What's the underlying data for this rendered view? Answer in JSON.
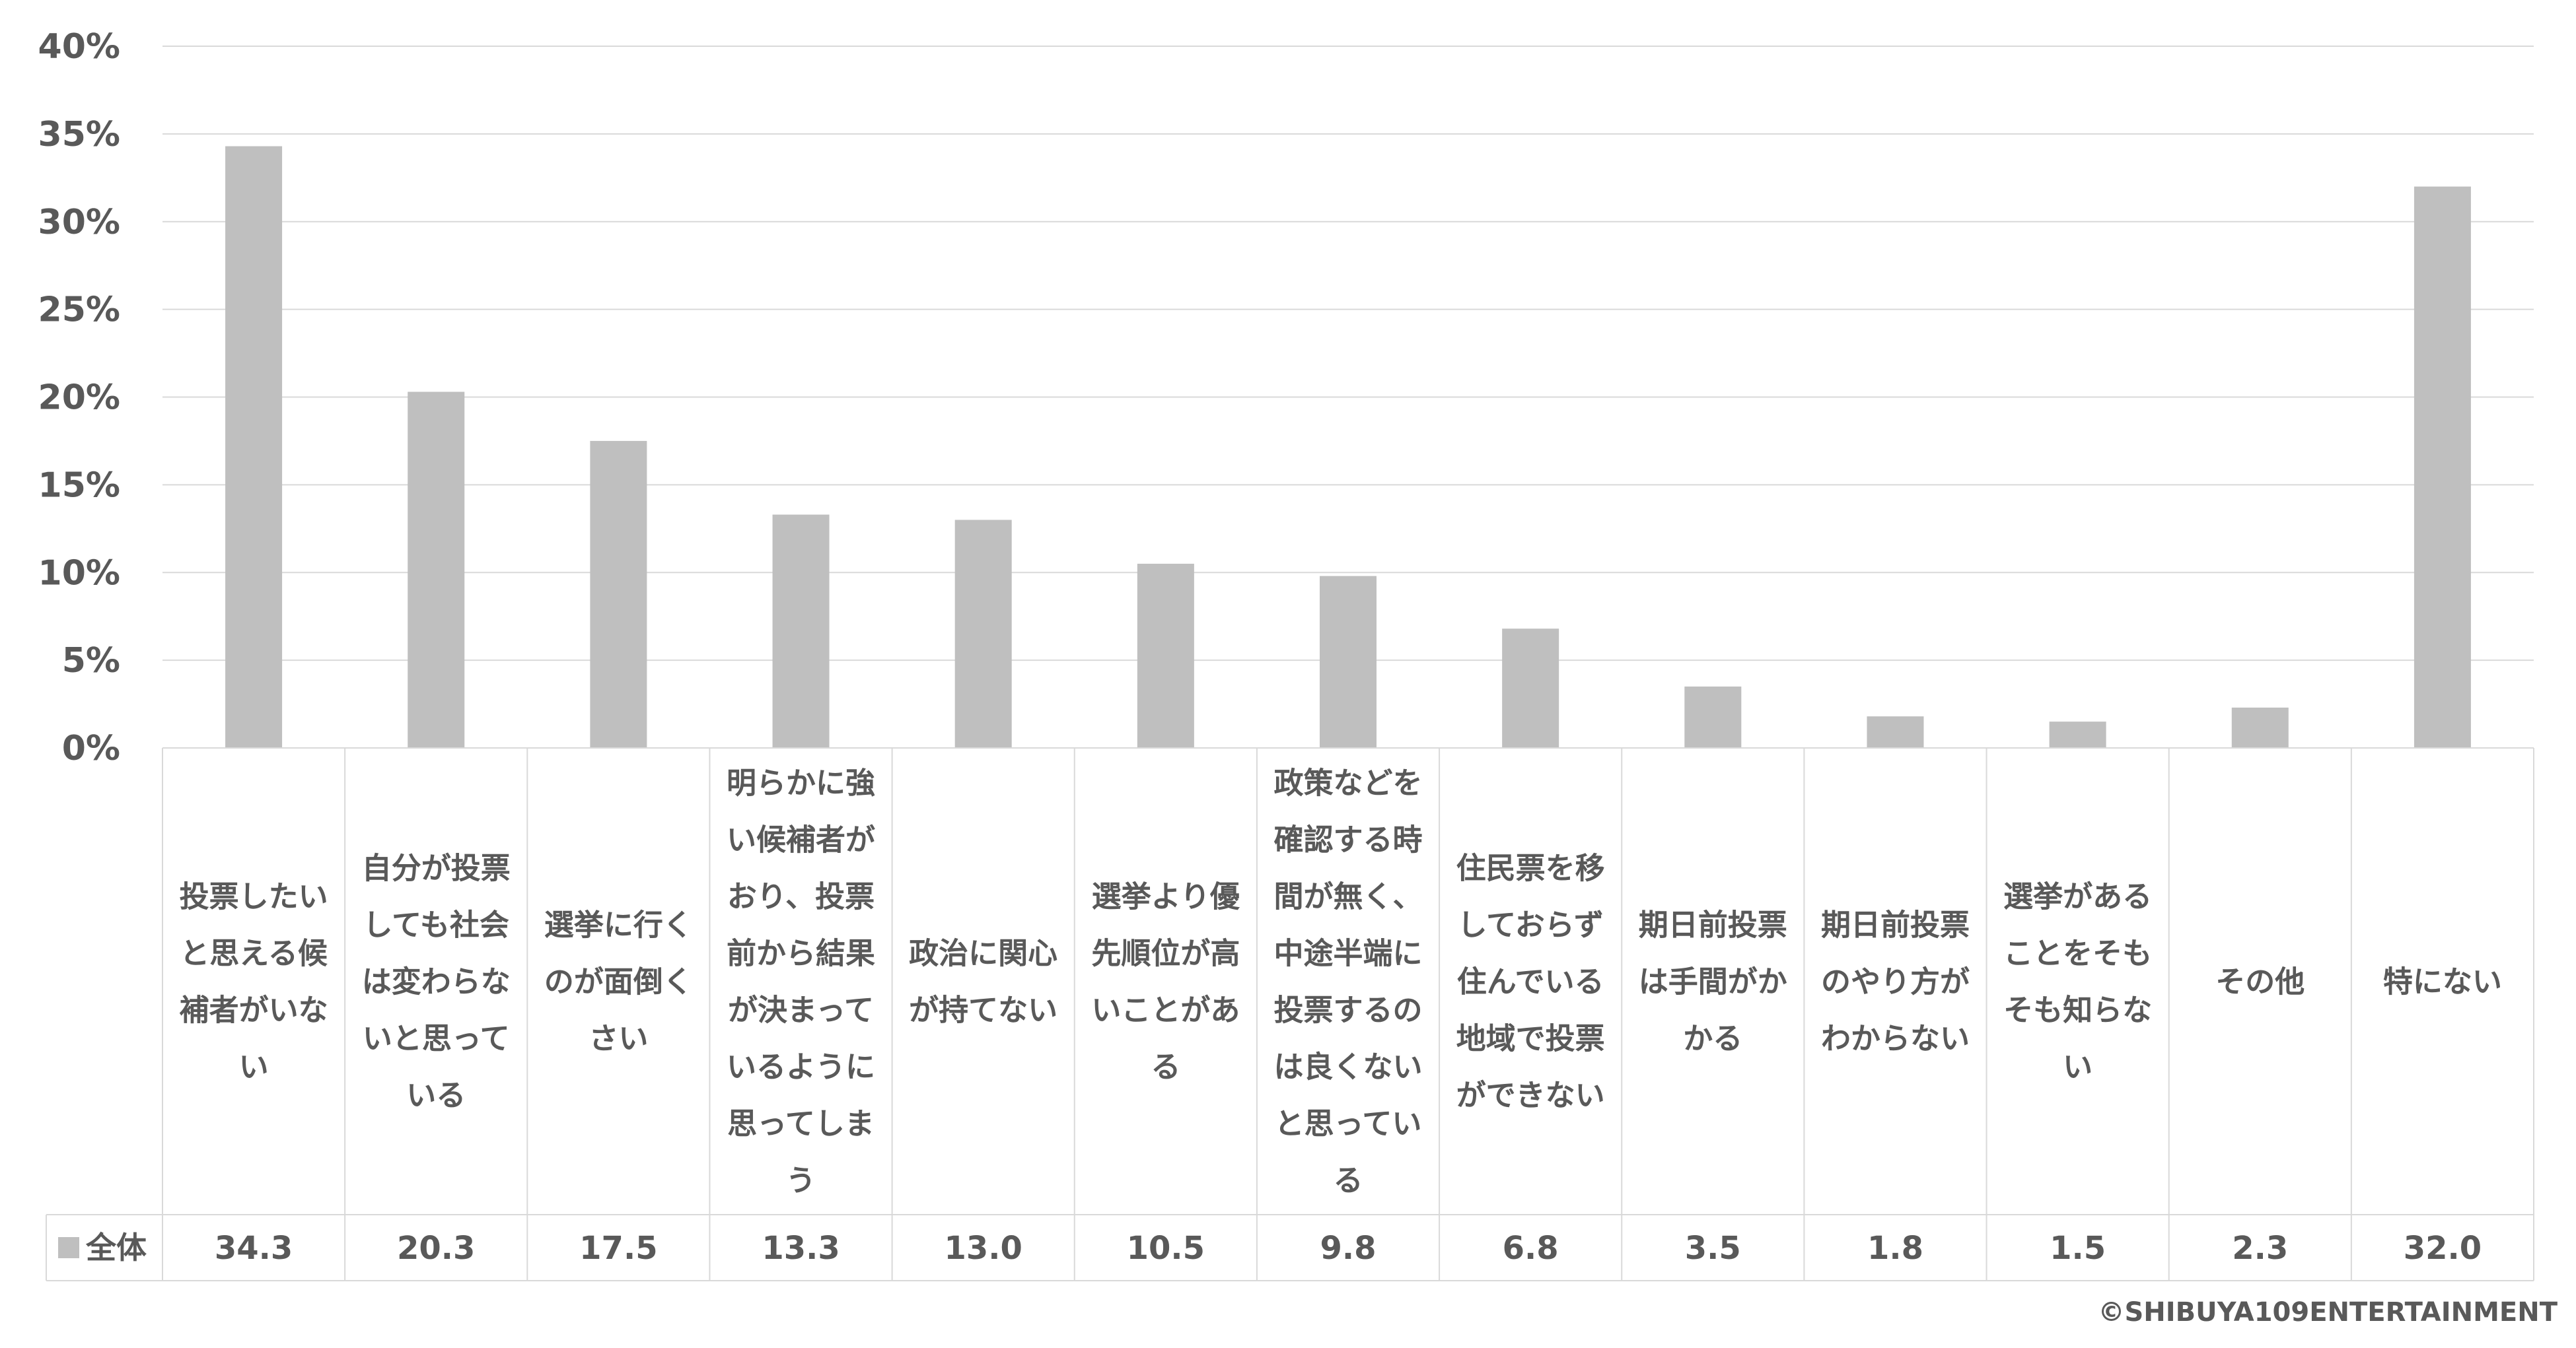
{
  "chart_data": {
    "type": "bar",
    "y_axis": {
      "min": 0,
      "max": 40,
      "step": 5,
      "tick_labels": [
        "0%",
        "5%",
        "10%",
        "15%",
        "20%",
        "25%",
        "30%",
        "35%",
        "40%"
      ]
    },
    "grid": true,
    "categories": [
      "投票したいと思える候補者がいない",
      "自分が投票しても社会は変わらないと思っている",
      "選挙に行くのが面倒くさい",
      "明らかに強い候補者がおり、投票前から結果が決まっているように思ってしまう",
      "政治に関心が持てない",
      "選挙より優先順位が高いことがある",
      "政策などを確認する時間が無く、中途半端に投票するのは良くないと思っている",
      "住民票を移しておらず住んでいる地域で投票ができない",
      "期日前投票は手間がかかる",
      "期日前投票のやり方がわからない",
      "選挙があることをそもそも知らない",
      "その他",
      "特にない"
    ],
    "category_label_lines": [
      [
        "投票したい",
        "と思える候",
        "補者がいな",
        "い"
      ],
      [
        "自分が投票",
        "しても社会",
        "は変わらな",
        "いと思って",
        "いる"
      ],
      [
        "選挙に行く",
        "のが面倒く",
        "さい"
      ],
      [
        "明らかに強",
        "い候補者が",
        "おり、投票",
        "前から結果",
        "が決まって",
        "いるように",
        "思ってしま",
        "う"
      ],
      [
        "政治に関心",
        "が持てない"
      ],
      [
        "選挙より優",
        "先順位が高",
        "いことがあ",
        "る"
      ],
      [
        "政策などを",
        "確認する時",
        "間が無く、",
        "中途半端に",
        "投票するの",
        "は良くない",
        "と思ってい",
        "る"
      ],
      [
        "住民票を移",
        "しておらず",
        "住んでいる",
        "地域で投票",
        "ができない"
      ],
      [
        "期日前投票",
        "は手間がか",
        "かる"
      ],
      [
        "期日前投票",
        "のやり方が",
        "わからない"
      ],
      [
        "選挙がある",
        "ことをそも",
        "そも知らな",
        "い"
      ],
      [
        "その他"
      ],
      [
        "特にない"
      ]
    ],
    "series": [
      {
        "name": "全体",
        "color": "#bfbfbf",
        "values": [
          34.3,
          20.3,
          17.5,
          13.3,
          13.0,
          10.5,
          9.8,
          6.8,
          3.5,
          1.8,
          1.5,
          2.3,
          32.0
        ],
        "value_labels": [
          "34.3",
          "20.3",
          "17.5",
          "13.3",
          "13.0",
          "10.5",
          "9.8",
          "6.8",
          "3.5",
          "1.8",
          "1.5",
          "2.3",
          "32.0"
        ]
      }
    ],
    "legend_placement": "data-table-row"
  },
  "copyright": "©SHIBUYA109ENTERTAINMENT"
}
